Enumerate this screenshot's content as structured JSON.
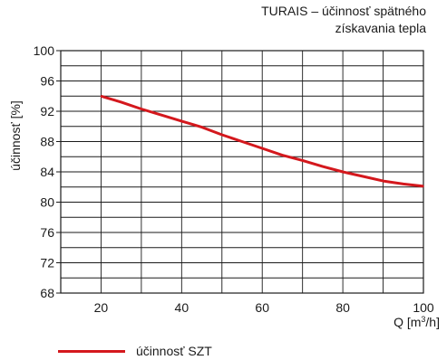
{
  "chart_data": {
    "type": "line",
    "title_lines": [
      "TURAIS – účinnosť spätného",
      "získavania tepla"
    ],
    "xlabel_prefix": "Q [m",
    "xlabel_sup": "3",
    "xlabel_suffix": "/h]",
    "ylabel": "účinnosť [%]",
    "xlim": [
      10,
      100
    ],
    "ylim": [
      68,
      100
    ],
    "x_ticks": [
      20,
      40,
      60,
      80,
      100
    ],
    "y_ticks": [
      68,
      72,
      76,
      80,
      84,
      88,
      92,
      96,
      100
    ],
    "x_grid": [
      10,
      20,
      30,
      40,
      50,
      60,
      70,
      80,
      90,
      100
    ],
    "y_grid": [
      68,
      70,
      72,
      74,
      76,
      78,
      80,
      82,
      84,
      86,
      88,
      90,
      92,
      94,
      96,
      98,
      100
    ],
    "grid": true,
    "legend_position": "bottom-left",
    "series": [
      {
        "name": "účinnosť SZT",
        "color": "#d4181d",
        "x": [
          20,
          25,
          30,
          35,
          40,
          45,
          50,
          55,
          60,
          65,
          70,
          75,
          80,
          85,
          90,
          95,
          100
        ],
        "y": [
          94.0,
          93.2,
          92.3,
          91.5,
          90.7,
          89.9,
          88.9,
          88.0,
          87.1,
          86.2,
          85.5,
          84.7,
          84.0,
          83.4,
          82.8,
          82.4,
          82.1
        ]
      }
    ]
  }
}
